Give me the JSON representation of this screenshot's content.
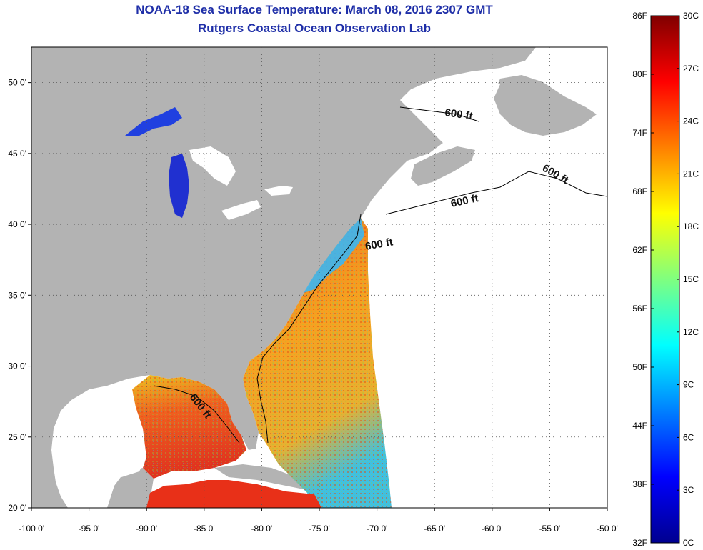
{
  "title": "NOAA-18 Sea Surface Temperature:  March 08, 2016 2307 GMT",
  "subtitle": "Rutgers Coastal Ocean Observation Lab",
  "map": {
    "lon_ticks": [
      "-100 0'",
      "-95 0'",
      "-90 0'",
      "-85 0'",
      "-80 0'",
      "-75 0'",
      "-70 0'",
      "-65 0'",
      "-60 0'",
      "-55 0'",
      "-50 0'"
    ],
    "lat_ticks": [
      "50 0'",
      "45 0'",
      "40 0'",
      "35 0'",
      "30 0'",
      "25 0'",
      "20 0'"
    ],
    "lon_range": [
      -100,
      -50
    ],
    "lat_range": [
      20,
      52.5
    ],
    "land_color": "#b3b3b3",
    "no_data_color": "#ffffff",
    "gridlines": "dotted",
    "depth_contour_label": "600 ft",
    "depth_labels": [
      "600 ft",
      "600 ft",
      "600 ft",
      "600 ft",
      "600 ft"
    ]
  },
  "colorbar": {
    "fahrenheit_labels": [
      "86F",
      "80F",
      "74F",
      "68F",
      "62F",
      "56F",
      "50F",
      "44F",
      "38F",
      "32F"
    ],
    "celsius_labels": [
      "30C",
      "27C",
      "24C",
      "21C",
      "18C",
      "15C",
      "12C",
      "9C",
      "6C",
      "3C",
      "0C"
    ],
    "range_c": [
      0,
      30
    ],
    "range_f": [
      32,
      86
    ],
    "colormap": "jet"
  }
}
